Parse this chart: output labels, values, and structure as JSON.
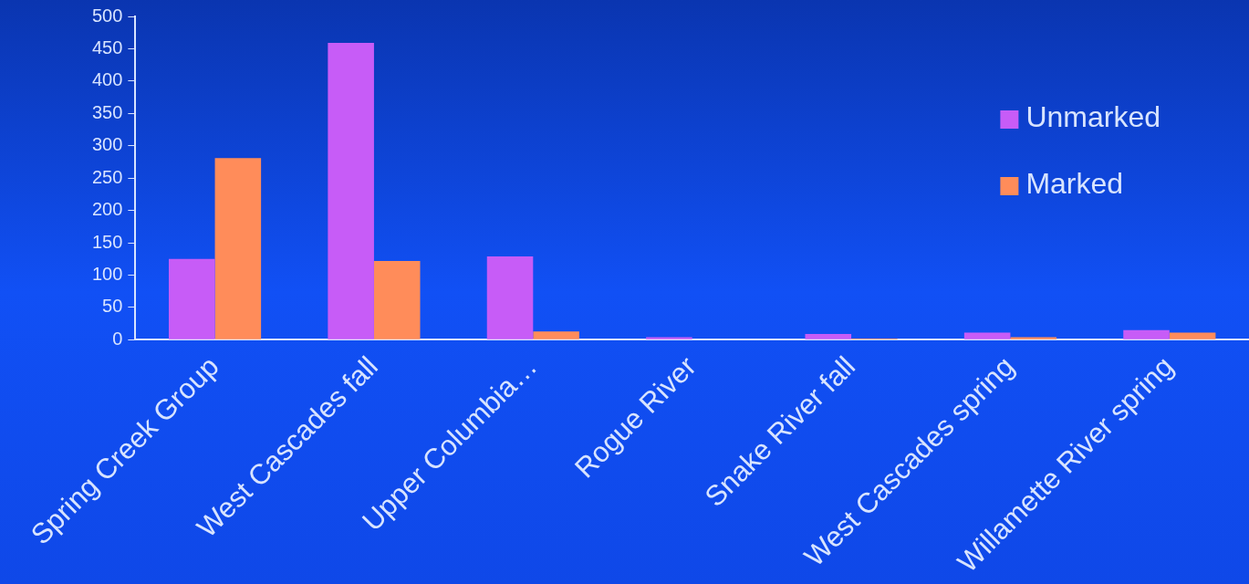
{
  "chart_data": {
    "type": "bar",
    "categories": [
      "Spring Creek Group",
      "West Cascades fall",
      "Upper Columbia…",
      "Rogue River",
      "Snake River fall",
      "West Cascades spring",
      "Willamette River spring"
    ],
    "series": [
      {
        "name": "Unmarked",
        "color": "#c75cf7",
        "values": [
          125,
          459,
          129,
          4,
          9,
          11,
          15
        ]
      },
      {
        "name": "Marked",
        "color": "#ff8c5a",
        "values": [
          281,
          122,
          13,
          0,
          2,
          4,
          11
        ]
      }
    ],
    "ylim": [
      0,
      500
    ],
    "yticks": [
      0,
      50,
      100,
      150,
      200,
      250,
      300,
      350,
      400,
      450,
      500
    ],
    "grid": false,
    "legend": "top right"
  }
}
